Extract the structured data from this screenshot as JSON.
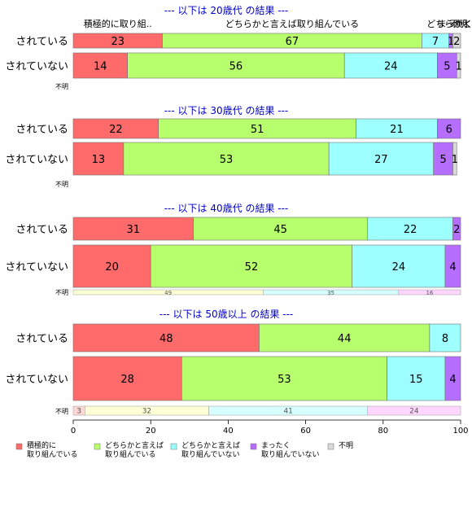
{
  "colors": {
    "title": "#0000cc",
    "cat1": "#ff6b6b",
    "cat2": "#b8ff6e",
    "cat3": "#9effff",
    "cat4": "#b56eff",
    "cat5": "#d9d9d9",
    "small1": "#ffd6d6",
    "small2": "#ffffd6",
    "small3": "#d6ffff",
    "small4": "#ffd6ff"
  },
  "chart_data": {
    "type": "bar",
    "orientation": "horizontal",
    "stacked": true,
    "xlim": [
      0,
      100
    ],
    "x_ticks": [
      "0",
      "20",
      "40",
      "60",
      "80",
      "100"
    ],
    "grid": false,
    "legend_position": "bottom",
    "legend": [
      {
        "line1": "積極的に",
        "line2": "取り組んでいる"
      },
      {
        "line1": "どちらかと言えば",
        "line2": "取り組んでいる"
      },
      {
        "line1": "どちらかと言えば",
        "line2": "取り組んでいない"
      },
      {
        "line1": "まったく",
        "line2": "取り組んでいない"
      },
      {
        "line1": "不明",
        "line2": ""
      }
    ],
    "header_labels": [
      "積極的に取り組..",
      "どちらかと言えば取り組んでいる",
      "どちらかと",
      "まったく",
      "不明"
    ],
    "panels": [
      {
        "title": "--- 以下は 20歳代 の結果 ---",
        "rows": [
          {
            "label": "されている",
            "values": [
              23,
              67,
              7,
              1,
              2
            ]
          },
          {
            "label": "されていない",
            "values": [
              14,
              56,
              24,
              5,
              1
            ]
          }
        ],
        "unknown": {
          "label": "不明",
          "values": []
        }
      },
      {
        "title": "--- 以下は 30歳代 の結果 ---",
        "rows": [
          {
            "label": "されている",
            "values": [
              22,
              51,
              21,
              6,
              0
            ]
          },
          {
            "label": "されていない",
            "values": [
              13,
              53,
              27,
              5,
              1
            ]
          }
        ],
        "unknown": {
          "label": "不明",
          "values": []
        }
      },
      {
        "title": "--- 以下は 40歳代 の結果 ---",
        "rows": [
          {
            "label": "されている",
            "values": [
              31,
              45,
              22,
              2,
              0
            ]
          },
          {
            "label": "されていない",
            "values": [
              20,
              52,
              24,
              4,
              0
            ]
          }
        ],
        "unknown": {
          "label": "不明",
          "values": [
            0,
            49,
            35,
            16
          ]
        }
      },
      {
        "title": "--- 以下は 50歳以上 の結果 ---",
        "rows": [
          {
            "label": "されている",
            "values": [
              48,
              44,
              8,
              0,
              0
            ]
          },
          {
            "label": "されていない",
            "values": [
              28,
              53,
              15,
              4,
              0
            ]
          }
        ],
        "unknown": {
          "label": "不明",
          "values": [
            3,
            32,
            41,
            24
          ]
        }
      }
    ]
  }
}
